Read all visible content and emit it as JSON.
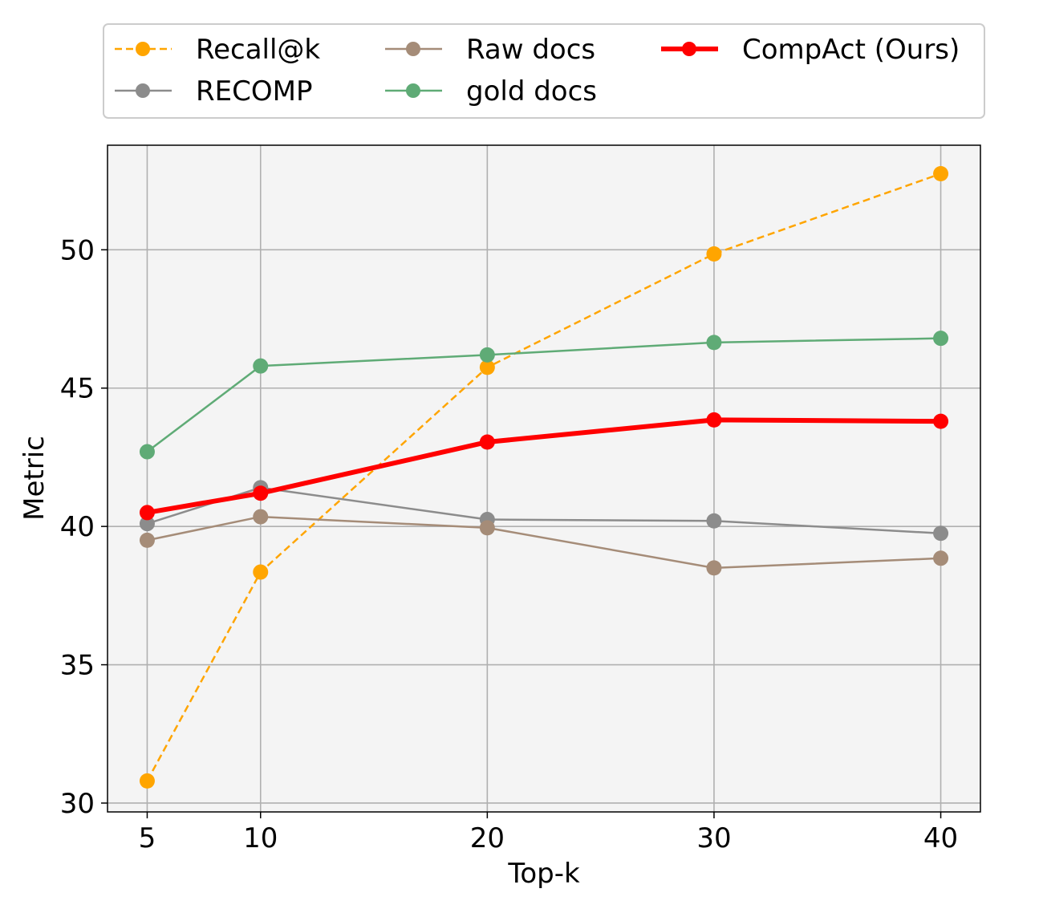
{
  "chart_data": {
    "type": "line",
    "title": "",
    "xlabel": "Top-k",
    "ylabel": "Metric",
    "xlim": [
      3.25,
      41.75
    ],
    "ylim": [
      29.68,
      53.78
    ],
    "xticks": [
      5,
      10,
      20,
      30,
      40
    ],
    "yticks": [
      30,
      35,
      40,
      45,
      50
    ],
    "grid": true,
    "legend_position": "top (above plot, 3 columns)",
    "x": [
      5,
      10,
      20,
      30,
      40
    ],
    "series": [
      {
        "name": "Recall@k",
        "color": "#FFA500",
        "style": "dashed",
        "values": [
          30.8,
          38.35,
          45.75,
          49.85,
          52.75
        ]
      },
      {
        "name": "RECOMP",
        "color": "#8C8C8C",
        "style": "solid",
        "values": [
          40.1,
          41.4,
          40.25,
          40.2,
          39.75
        ]
      },
      {
        "name": "Raw docs",
        "color": "#A58C78",
        "style": "solid",
        "values": [
          39.5,
          40.35,
          39.95,
          38.5,
          38.85
        ]
      },
      {
        "name": "gold docs",
        "color": "#5FAB76",
        "style": "solid",
        "values": [
          42.7,
          45.8,
          46.2,
          46.65,
          46.8
        ]
      },
      {
        "name": "CompAct (Ours)",
        "color": "#FF0000",
        "style": "bold",
        "values": [
          40.5,
          41.2,
          43.05,
          43.85,
          43.8
        ]
      }
    ]
  }
}
